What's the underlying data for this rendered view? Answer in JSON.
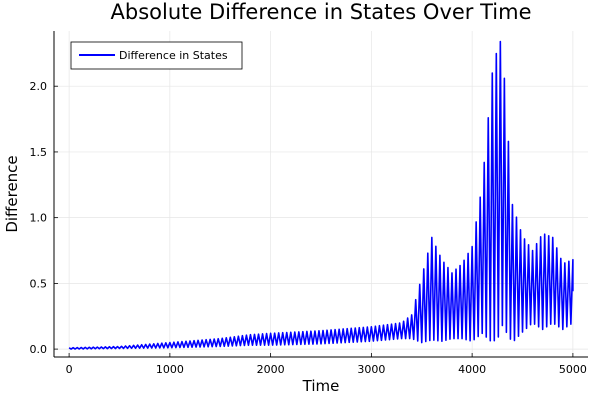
{
  "chart_data": {
    "type": "line",
    "title": "Absolute Difference in States Over Time",
    "xlabel": "Time",
    "ylabel": "Difference",
    "xlim": [
      -150,
      5150
    ],
    "ylim": [
      -0.06,
      2.42
    ],
    "xticks": [
      0,
      1000,
      2000,
      3000,
      4000,
      5000
    ],
    "xtick_labels": [
      "0",
      "1000",
      "2000",
      "3000",
      "4000",
      "5000"
    ],
    "yticks": [
      0.0,
      0.5,
      1.0,
      1.5,
      2.0
    ],
    "ytick_labels": [
      "0.0",
      "0.5",
      "1.0",
      "1.5",
      "2.0"
    ],
    "grid": true,
    "legend_position": "top-left",
    "color": "#0000ff",
    "series": [
      {
        "name": "Difference in States",
        "envelope": {
          "x": [
            0,
            500,
            1000,
            1500,
            1800,
            2000,
            2500,
            3000,
            3300,
            3400,
            3500,
            3600,
            3700,
            3800,
            3900,
            4000,
            4100,
            4200,
            4270,
            4300,
            4400,
            4500,
            4600,
            4700,
            4800,
            4900,
            5000
          ],
          "upper": [
            0.01,
            0.02,
            0.05,
            0.08,
            0.11,
            0.12,
            0.14,
            0.17,
            0.2,
            0.26,
            0.55,
            0.85,
            0.68,
            0.58,
            0.65,
            0.78,
            1.25,
            2.1,
            2.36,
            2.3,
            1.1,
            0.86,
            0.75,
            0.88,
            0.85,
            0.65,
            0.68
          ],
          "lower": [
            0.0,
            0.005,
            0.01,
            0.02,
            0.03,
            0.03,
            0.04,
            0.06,
            0.08,
            0.08,
            0.05,
            0.07,
            0.06,
            0.08,
            0.08,
            0.06,
            0.12,
            0.05,
            0.1,
            0.18,
            0.05,
            0.13,
            0.2,
            0.15,
            0.2,
            0.15,
            0.2
          ]
        },
        "oscillation_period": 40
      }
    ]
  }
}
